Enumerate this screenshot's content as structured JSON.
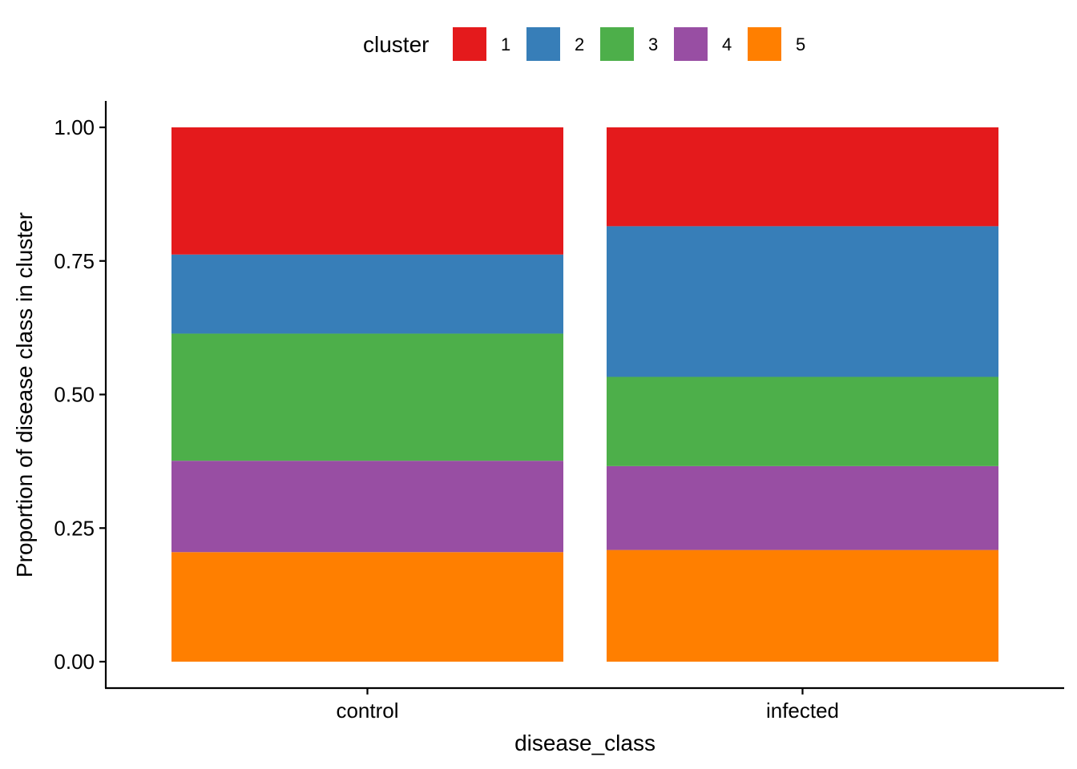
{
  "chart_data": {
    "type": "bar",
    "stacked": true,
    "categories": [
      "control",
      "infected"
    ],
    "series": [
      {
        "name": "5",
        "values": [
          0.205,
          0.209
        ],
        "color": "#FF7F00"
      },
      {
        "name": "4",
        "values": [
          0.171,
          0.157
        ],
        "color": "#984EA3"
      },
      {
        "name": "3",
        "values": [
          0.238,
          0.167
        ],
        "color": "#4DAF4A"
      },
      {
        "name": "2",
        "values": [
          0.148,
          0.282
        ],
        "color": "#377EB8"
      },
      {
        "name": "1",
        "values": [
          0.238,
          0.185
        ],
        "color": "#E41A1C"
      }
    ],
    "xlabel": "disease_class",
    "ylabel": "Proportion of disease class in cluster",
    "ylim": [
      0,
      1
    ],
    "yticks": [
      "0.00",
      "0.25",
      "0.50",
      "0.75",
      "1.00"
    ],
    "ytick_values": [
      0,
      0.25,
      0.5,
      0.75,
      1
    ],
    "grid": false,
    "legend": {
      "title": "cluster",
      "placement": "top",
      "entries": [
        {
          "label": "1",
          "color": "#E41A1C"
        },
        {
          "label": "2",
          "color": "#377EB8"
        },
        {
          "label": "3",
          "color": "#4DAF4A"
        },
        {
          "label": "4",
          "color": "#984EA3"
        },
        {
          "label": "5",
          "color": "#FF7F00"
        }
      ]
    }
  }
}
